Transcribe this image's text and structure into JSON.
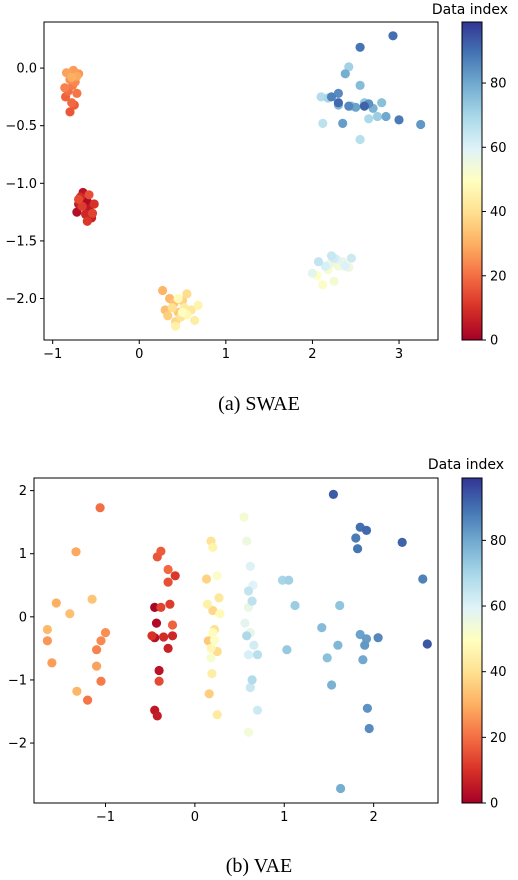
{
  "chart_data": [
    {
      "type": "scatter",
      "caption": "(a) SWAE",
      "colorbar": {
        "title": "Data index",
        "colormap": "RdYlBu",
        "range": [
          0,
          99
        ],
        "ticks": [
          0,
          20,
          40,
          60,
          80
        ]
      },
      "xlim": [
        -1.1,
        3.45
      ],
      "ylim": [
        -2.36,
        0.4
      ],
      "xticks": [
        -1,
        0,
        1,
        2,
        3
      ],
      "yticks": [
        -2.0,
        -1.5,
        -1.0,
        -0.5,
        0.0
      ],
      "xtick_labels": [
        "−1",
        "0",
        "1",
        "2",
        "3"
      ],
      "ytick_labels": [
        "−2.0",
        "−1.5",
        "−1.0",
        "−0.5",
        "0.0"
      ],
      "points": [
        {
          "x": -0.63,
          "y": -1.13,
          "c": 1
        },
        {
          "x": -0.6,
          "y": -1.16,
          "c": 2
        },
        {
          "x": -0.72,
          "y": -1.25,
          "c": 3
        },
        {
          "x": -0.65,
          "y": -1.08,
          "c": 4
        },
        {
          "x": -0.58,
          "y": -1.22,
          "c": 5
        },
        {
          "x": -0.7,
          "y": -1.18,
          "c": 6
        },
        {
          "x": -0.55,
          "y": -1.3,
          "c": 7
        },
        {
          "x": -0.62,
          "y": -1.27,
          "c": 8
        },
        {
          "x": -0.68,
          "y": -1.12,
          "c": 9
        },
        {
          "x": -0.52,
          "y": -1.18,
          "c": 10
        },
        {
          "x": -0.6,
          "y": -1.33,
          "c": 11
        },
        {
          "x": -0.66,
          "y": -1.2,
          "c": 12
        },
        {
          "x": -0.54,
          "y": -1.26,
          "c": 13
        },
        {
          "x": -0.7,
          "y": -1.14,
          "c": 14
        },
        {
          "x": -0.58,
          "y": -1.1,
          "c": 15
        },
        {
          "x": -0.8,
          "y": -0.38,
          "c": 16
        },
        {
          "x": -0.75,
          "y": -0.32,
          "c": 17
        },
        {
          "x": -0.85,
          "y": -0.25,
          "c": 18
        },
        {
          "x": -0.78,
          "y": -0.3,
          "c": 19
        },
        {
          "x": -0.82,
          "y": -0.2,
          "c": 20
        },
        {
          "x": -0.72,
          "y": -0.22,
          "c": 21
        },
        {
          "x": -0.77,
          "y": -0.15,
          "c": 22
        },
        {
          "x": -0.86,
          "y": -0.17,
          "c": 23
        },
        {
          "x": -0.74,
          "y": -0.12,
          "c": 24
        },
        {
          "x": -0.8,
          "y": -0.1,
          "c": 25
        },
        {
          "x": -0.7,
          "y": -0.05,
          "c": 26
        },
        {
          "x": -0.76,
          "y": -0.02,
          "c": 27
        },
        {
          "x": -0.84,
          "y": -0.04,
          "c": 28
        },
        {
          "x": -0.72,
          "y": -0.07,
          "c": 29
        },
        {
          "x": -0.78,
          "y": -0.08,
          "c": 30
        },
        {
          "x": 0.27,
          "y": -1.93,
          "c": 31
        },
        {
          "x": 0.35,
          "y": -2.0,
          "c": 32
        },
        {
          "x": 0.3,
          "y": -2.1,
          "c": 33
        },
        {
          "x": 0.4,
          "y": -2.04,
          "c": 34
        },
        {
          "x": 0.45,
          "y": -2.12,
          "c": 35
        },
        {
          "x": 0.33,
          "y": -2.15,
          "c": 36
        },
        {
          "x": 0.5,
          "y": -2.02,
          "c": 37
        },
        {
          "x": 0.42,
          "y": -2.2,
          "c": 38
        },
        {
          "x": 0.55,
          "y": -1.96,
          "c": 39
        },
        {
          "x": 0.38,
          "y": -2.08,
          "c": 40
        },
        {
          "x": 0.48,
          "y": -2.16,
          "c": 41
        },
        {
          "x": 0.6,
          "y": -2.1,
          "c": 42
        },
        {
          "x": 0.52,
          "y": -2.08,
          "c": 43
        },
        {
          "x": 0.64,
          "y": -2.19,
          "c": 44
        },
        {
          "x": 0.42,
          "y": -2.24,
          "c": 45
        },
        {
          "x": 0.68,
          "y": -2.06,
          "c": 46
        },
        {
          "x": 0.55,
          "y": -2.14,
          "c": 47
        },
        {
          "x": 0.45,
          "y": -2.0,
          "c": 48
        },
        {
          "x": 0.5,
          "y": -2.12,
          "c": 49
        },
        {
          "x": 2.05,
          "y": -1.8,
          "c": 50
        },
        {
          "x": 2.12,
          "y": -1.88,
          "c": 51
        },
        {
          "x": 2.18,
          "y": -1.75,
          "c": 52
        },
        {
          "x": 2.25,
          "y": -1.85,
          "c": 53
        },
        {
          "x": 2.3,
          "y": -1.72,
          "c": 54
        },
        {
          "x": 2.42,
          "y": -1.73,
          "c": 55
        },
        {
          "x": 2.2,
          "y": -1.7,
          "c": 56
        },
        {
          "x": 2.35,
          "y": -1.68,
          "c": 57
        },
        {
          "x": 2.0,
          "y": -1.78,
          "c": 58
        },
        {
          "x": 2.28,
          "y": -1.66,
          "c": 59
        },
        {
          "x": 2.38,
          "y": -1.72,
          "c": 60
        },
        {
          "x": 2.15,
          "y": -1.72,
          "c": 61
        },
        {
          "x": 2.25,
          "y": -1.65,
          "c": 62
        },
        {
          "x": 2.45,
          "y": -1.65,
          "c": 63
        },
        {
          "x": 2.22,
          "y": -1.63,
          "c": 64
        },
        {
          "x": 2.07,
          "y": -1.68,
          "c": 65
        },
        {
          "x": 2.12,
          "y": -0.48,
          "c": 66
        },
        {
          "x": 2.55,
          "y": -0.62,
          "c": 67
        },
        {
          "x": 2.1,
          "y": -0.25,
          "c": 68
        },
        {
          "x": 2.65,
          "y": -0.44,
          "c": 69
        },
        {
          "x": 2.18,
          "y": -0.26,
          "c": 70
        },
        {
          "x": 2.42,
          "y": 0.01,
          "c": 71
        },
        {
          "x": 2.75,
          "y": -0.42,
          "c": 72
        },
        {
          "x": 2.6,
          "y": -0.3,
          "c": 73
        },
        {
          "x": 2.45,
          "y": -0.33,
          "c": 74
        },
        {
          "x": 2.8,
          "y": -0.3,
          "c": 75
        },
        {
          "x": 2.55,
          "y": -0.15,
          "c": 76
        },
        {
          "x": 2.3,
          "y": -0.32,
          "c": 77
        },
        {
          "x": 2.7,
          "y": -0.35,
          "c": 78
        },
        {
          "x": 2.38,
          "y": -0.05,
          "c": 79
        },
        {
          "x": 2.85,
          "y": -0.42,
          "c": 80
        },
        {
          "x": 2.5,
          "y": -0.34,
          "c": 81
        },
        {
          "x": 2.35,
          "y": -0.48,
          "c": 82
        },
        {
          "x": 3.25,
          "y": -0.49,
          "c": 83
        },
        {
          "x": 2.65,
          "y": -0.31,
          "c": 84
        },
        {
          "x": 2.3,
          "y": -0.22,
          "c": 85
        },
        {
          "x": 2.42,
          "y": -0.33,
          "c": 86
        },
        {
          "x": 2.22,
          "y": -0.25,
          "c": 87
        },
        {
          "x": 3.0,
          "y": -0.45,
          "c": 88
        },
        {
          "x": 2.55,
          "y": 0.18,
          "c": 89
        },
        {
          "x": 2.93,
          "y": 0.28,
          "c": 90
        },
        {
          "x": 2.3,
          "y": -0.3,
          "c": 91
        },
        {
          "x": 2.6,
          "y": -0.33,
          "c": 92
        }
      ]
    },
    {
      "type": "scatter",
      "caption": "(b) VAE",
      "colorbar": {
        "title": "Data index",
        "colormap": "RdYlBu",
        "range": [
          0,
          99
        ],
        "ticks": [
          0,
          20,
          40,
          60,
          80
        ]
      },
      "xlim": [
        -1.8,
        2.72
      ],
      "ylim": [
        -2.95,
        2.2
      ],
      "xticks": [
        -1,
        0,
        1,
        2
      ],
      "yticks": [
        -2,
        -1,
        0,
        1,
        2
      ],
      "xtick_labels": [
        "−1",
        "0",
        "1",
        "2"
      ],
      "ytick_labels": [
        "−2",
        "−1",
        "0",
        "1",
        "2"
      ],
      "points": [
        {
          "x": -0.45,
          "y": 0.15,
          "c": 1
        },
        {
          "x": -0.43,
          "y": -0.1,
          "c": 2
        },
        {
          "x": -0.45,
          "y": -0.33,
          "c": 3
        },
        {
          "x": -0.4,
          "y": -0.85,
          "c": 4
        },
        {
          "x": -0.45,
          "y": -1.48,
          "c": 5
        },
        {
          "x": -0.42,
          "y": -1.57,
          "c": 6
        },
        {
          "x": -0.3,
          "y": -0.5,
          "c": 7
        },
        {
          "x": -0.25,
          "y": -0.3,
          "c": 8
        },
        {
          "x": -0.35,
          "y": -0.32,
          "c": 9
        },
        {
          "x": -0.48,
          "y": -0.3,
          "c": 10
        },
        {
          "x": -0.22,
          "y": 0.65,
          "c": 11
        },
        {
          "x": -0.28,
          "y": 0.2,
          "c": 12
        },
        {
          "x": -0.38,
          "y": 0.15,
          "c": 13
        },
        {
          "x": -0.4,
          "y": -1.02,
          "c": 14
        },
        {
          "x": -0.3,
          "y": 0.55,
          "c": 15
        },
        {
          "x": -0.42,
          "y": 0.95,
          "c": 16
        },
        {
          "x": -0.38,
          "y": 1.04,
          "c": 17
        },
        {
          "x": -0.25,
          "y": -0.13,
          "c": 18
        },
        {
          "x": -0.3,
          "y": 0.75,
          "c": 19
        },
        {
          "x": -1.06,
          "y": 1.73,
          "c": 20
        },
        {
          "x": -1.2,
          "y": -1.32,
          "c": 21
        },
        {
          "x": -1.05,
          "y": -1.02,
          "c": 22
        },
        {
          "x": -1.1,
          "y": -0.52,
          "c": 23
        },
        {
          "x": -1.05,
          "y": -0.38,
          "c": 24
        },
        {
          "x": -1.0,
          "y": -0.25,
          "c": 25
        },
        {
          "x": -1.65,
          "y": -0.38,
          "c": 26
        },
        {
          "x": -1.6,
          "y": -0.73,
          "c": 27
        },
        {
          "x": -1.1,
          "y": -0.78,
          "c": 28
        },
        {
          "x": -1.33,
          "y": 1.03,
          "c": 29
        },
        {
          "x": -1.55,
          "y": 0.22,
          "c": 30
        },
        {
          "x": -1.32,
          "y": -1.18,
          "c": 31
        },
        {
          "x": -1.65,
          "y": -0.2,
          "c": 32
        },
        {
          "x": -1.4,
          "y": 0.05,
          "c": 33
        },
        {
          "x": -1.15,
          "y": 0.28,
          "c": 34
        },
        {
          "x": 0.15,
          "y": -0.38,
          "c": 35
        },
        {
          "x": 0.16,
          "y": -1.22,
          "c": 36
        },
        {
          "x": 0.13,
          "y": 0.6,
          "c": 37
        },
        {
          "x": 0.2,
          "y": 0.1,
          "c": 38
        },
        {
          "x": 0.25,
          "y": -0.55,
          "c": 39
        },
        {
          "x": 0.22,
          "y": -0.2,
          "c": 40
        },
        {
          "x": 0.18,
          "y": 1.2,
          "c": 41
        },
        {
          "x": 0.27,
          "y": 0.3,
          "c": 42
        },
        {
          "x": 0.25,
          "y": -1.55,
          "c": 43
        },
        {
          "x": 0.19,
          "y": -0.9,
          "c": 44
        },
        {
          "x": 0.14,
          "y": 0.2,
          "c": 45
        },
        {
          "x": 0.2,
          "y": 1.1,
          "c": 46
        },
        {
          "x": 0.18,
          "y": -0.5,
          "c": 47
        },
        {
          "x": 0.28,
          "y": 0.05,
          "c": 48
        },
        {
          "x": 0.2,
          "y": -0.25,
          "c": 49
        },
        {
          "x": 0.22,
          "y": -0.37,
          "c": 50
        },
        {
          "x": 0.25,
          "y": 0.65,
          "c": 51
        },
        {
          "x": 0.18,
          "y": -0.65,
          "c": 52
        },
        {
          "x": 0.55,
          "y": 1.58,
          "c": 53
        },
        {
          "x": 0.6,
          "y": -1.83,
          "c": 54
        },
        {
          "x": 0.58,
          "y": 1.2,
          "c": 55
        },
        {
          "x": 0.6,
          "y": 0.15,
          "c": 56
        },
        {
          "x": 0.62,
          "y": -0.25,
          "c": 57
        },
        {
          "x": 0.56,
          "y": -0.1,
          "c": 58
        },
        {
          "x": 0.65,
          "y": 0.5,
          "c": 59
        },
        {
          "x": 0.62,
          "y": 0.8,
          "c": 60
        },
        {
          "x": 0.6,
          "y": -0.6,
          "c": 61
        },
        {
          "x": 0.66,
          "y": -0.45,
          "c": 62
        },
        {
          "x": 0.7,
          "y": -1.48,
          "c": 63
        },
        {
          "x": 0.62,
          "y": -1.12,
          "c": 64
        },
        {
          "x": 0.6,
          "y": 0.41,
          "c": 65
        },
        {
          "x": 0.64,
          "y": 0.25,
          "c": 66
        },
        {
          "x": 0.7,
          "y": -0.6,
          "c": 67
        },
        {
          "x": 0.64,
          "y": -1.0,
          "c": 68
        },
        {
          "x": 0.58,
          "y": -0.3,
          "c": 69
        },
        {
          "x": 0.98,
          "y": 0.58,
          "c": 70
        },
        {
          "x": 1.05,
          "y": 0.58,
          "c": 71
        },
        {
          "x": 1.12,
          "y": 0.18,
          "c": 72
        },
        {
          "x": 1.03,
          "y": -0.52,
          "c": 73
        },
        {
          "x": 1.62,
          "y": 0.18,
          "c": 74
        },
        {
          "x": 1.48,
          "y": -0.65,
          "c": 75
        },
        {
          "x": 1.42,
          "y": -0.17,
          "c": 76
        },
        {
          "x": 1.6,
          "y": -0.45,
          "c": 77
        },
        {
          "x": 1.53,
          "y": -1.08,
          "c": 78
        },
        {
          "x": 1.63,
          "y": -2.72,
          "c": 79
        },
        {
          "x": 1.88,
          "y": -0.68,
          "c": 80
        },
        {
          "x": 1.85,
          "y": -0.28,
          "c": 81
        },
        {
          "x": 1.92,
          "y": -0.35,
          "c": 82
        },
        {
          "x": 1.9,
          "y": -0.45,
          "c": 83
        },
        {
          "x": 1.93,
          "y": -1.45,
          "c": 84
        },
        {
          "x": 1.95,
          "y": -1.77,
          "c": 85
        },
        {
          "x": 2.05,
          "y": -0.33,
          "c": 86
        },
        {
          "x": 2.55,
          "y": 0.6,
          "c": 87
        },
        {
          "x": 1.8,
          "y": 1.25,
          "c": 88
        },
        {
          "x": 1.82,
          "y": 1.08,
          "c": 89
        },
        {
          "x": 1.85,
          "y": 1.42,
          "c": 90
        },
        {
          "x": 1.92,
          "y": 1.37,
          "c": 91
        },
        {
          "x": 2.32,
          "y": 1.18,
          "c": 92
        },
        {
          "x": 1.55,
          "y": 1.94,
          "c": 93
        },
        {
          "x": 2.6,
          "y": -0.43,
          "c": 94
        }
      ]
    }
  ]
}
